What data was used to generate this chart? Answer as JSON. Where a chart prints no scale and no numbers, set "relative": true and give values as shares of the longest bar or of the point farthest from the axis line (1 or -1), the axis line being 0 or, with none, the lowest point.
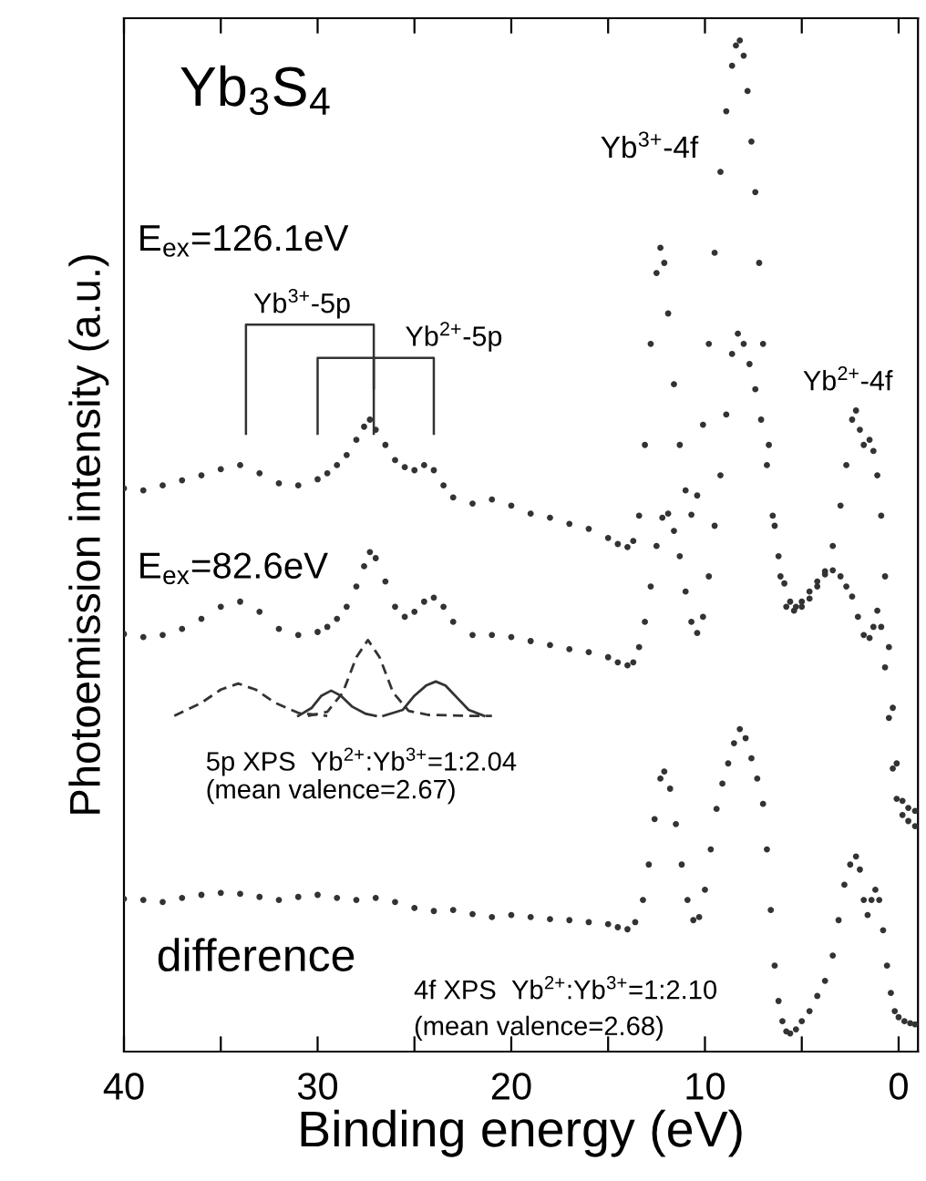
{
  "chart_data": {
    "type": "scatter",
    "relative": true,
    "xlabel": "Binding energy (eV)",
    "ylabel": "Photoemission intensity (a.u.)",
    "xlim": [
      40,
      -1
    ],
    "xticks": [
      40,
      {
        "value": 35,
        "label": null
      },
      30,
      {
        "value": 25,
        "label": null
      },
      20,
      {
        "value": 15,
        "label": null
      },
      10,
      {
        "value": 5,
        "label": null
      },
      0
    ],
    "tick_labels": "x",
    "grid": false,
    "legend": false,
    "marker": "circle",
    "series": [
      {
        "color": "#333333",
        "x": [
          40,
          39,
          38,
          37,
          36,
          35,
          34,
          33,
          32,
          31,
          30,
          29.5,
          29,
          28.5,
          28,
          27.6,
          27.3,
          27,
          26.5,
          26,
          25.5,
          25,
          24.5,
          24,
          23.5,
          23,
          22,
          21,
          20,
          19,
          18,
          17,
          16,
          15,
          14.5,
          14,
          13.7,
          13.4,
          13.1,
          12.8,
          12.5,
          12.3,
          12.1,
          11.9,
          11.6,
          11.3,
          11,
          10.7,
          10.4,
          10.1,
          9.8,
          9.5,
          9.2,
          8.9,
          8.6,
          8.4,
          8.2,
          8.0,
          7.8,
          7.6,
          7.4,
          7.2,
          7.0,
          6.7,
          6.4,
          6.1,
          5.8,
          5.4,
          5.0,
          4.6,
          4.2,
          3.8,
          3.4,
          3.0,
          2.7,
          2.4,
          2.2,
          2.0,
          1.8,
          1.5,
          1.3,
          1.1,
          0.9,
          0.7,
          0.5,
          0.3,
          0.1,
          -0.2,
          -0.5,
          -0.85
        ],
        "values": [
          0.557,
          0.555,
          0.56,
          0.565,
          0.57,
          0.576,
          0.58,
          0.572,
          0.562,
          0.56,
          0.566,
          0.572,
          0.58,
          0.59,
          0.605,
          0.618,
          0.625,
          0.615,
          0.6,
          0.585,
          0.578,
          0.575,
          0.58,
          0.575,
          0.56,
          0.548,
          0.542,
          0.546,
          0.54,
          0.532,
          0.528,
          0.522,
          0.517,
          0.508,
          0.502,
          0.499,
          0.505,
          0.53,
          0.6,
          0.7,
          0.77,
          0.795,
          0.78,
          0.73,
          0.66,
          0.6,
          0.555,
          0.531,
          0.55,
          0.62,
          0.7,
          0.79,
          0.87,
          0.93,
          0.975,
          0.995,
          1.0,
          0.985,
          0.95,
          0.9,
          0.85,
          0.78,
          0.7,
          0.6,
          0.52,
          0.47,
          0.44,
          0.436,
          0.44,
          0.448,
          0.46,
          0.475,
          0.5,
          0.54,
          0.58,
          0.625,
          0.634,
          0.615,
          0.6,
          0.605,
          0.594,
          0.57,
          0.53,
          0.47,
          0.4,
          0.34,
          0.285,
          0.248,
          0.241,
          0.238
        ]
      },
      {
        "color": "#333333",
        "x": [
          40,
          39,
          38,
          37,
          36,
          35,
          34,
          33,
          32,
          31,
          30,
          29.5,
          29,
          28.5,
          28,
          27.6,
          27.3,
          27,
          26.5,
          26,
          25.5,
          25,
          24.5,
          24,
          23.5,
          23,
          22,
          21,
          20,
          19,
          18,
          17,
          16,
          15,
          14.5,
          14,
          13.7,
          13.4,
          13.1,
          12.8,
          12.5,
          12.2,
          11.9,
          11.6,
          11.3,
          11,
          10.7,
          10.4,
          10.1,
          9.8,
          9.5,
          9.2,
          8.9,
          8.6,
          8.3,
          8.0,
          7.7,
          7.4,
          7.1,
          6.8,
          6.5,
          6.2,
          5.9,
          5.6,
          5.3,
          5.0,
          4.6,
          4.2,
          3.8,
          3.4,
          3.0,
          2.7,
          2.4,
          2.1,
          1.8,
          1.5,
          1.3,
          1.1,
          0.9,
          0.7,
          0.5,
          0.3,
          0.1,
          -0.2,
          -0.5,
          -0.85
        ],
        "values": [
          0.413,
          0.41,
          0.412,
          0.418,
          0.428,
          0.44,
          0.445,
          0.435,
          0.418,
          0.412,
          0.415,
          0.42,
          0.428,
          0.44,
          0.46,
          0.48,
          0.494,
          0.488,
          0.465,
          0.44,
          0.43,
          0.435,
          0.445,
          0.449,
          0.44,
          0.425,
          0.412,
          0.412,
          0.41,
          0.406,
          0.402,
          0.398,
          0.395,
          0.39,
          0.385,
          0.382,
          0.385,
          0.4,
          0.425,
          0.46,
          0.5,
          0.528,
          0.532,
          0.515,
          0.49,
          0.455,
          0.425,
          0.414,
          0.43,
          0.47,
          0.52,
          0.57,
          0.63,
          0.69,
          0.71,
          0.7,
          0.68,
          0.655,
          0.625,
          0.58,
          0.53,
          0.49,
          0.463,
          0.445,
          0.44,
          0.445,
          0.455,
          0.465,
          0.472,
          0.476,
          0.47,
          0.46,
          0.45,
          0.43,
          0.412,
          0.409,
          0.42,
          0.436,
          0.42,
          0.38,
          0.33,
          0.28,
          0.25,
          0.234,
          0.228,
          0.223
        ]
      },
      {
        "type": "line",
        "marker": "none",
        "line_style": "dashed",
        "color": "#333333",
        "x": [
          37.4,
          36,
          35,
          34.1,
          33.2,
          32.2,
          31,
          29.5
        ],
        "values": [
          0.332,
          0.345,
          0.358,
          0.364,
          0.358,
          0.345,
          0.335,
          0.332
        ]
      },
      {
        "type": "line",
        "marker": "none",
        "line_style": "dashed",
        "color": "#333333",
        "x": [
          30.5,
          29.5,
          28.7,
          28,
          27.4,
          26.8,
          26.1,
          25.3,
          24.3,
          22,
          21
        ],
        "values": [
          0.332,
          0.336,
          0.355,
          0.39,
          0.407,
          0.39,
          0.355,
          0.337,
          0.333,
          0.332,
          0.332
        ]
      },
      {
        "type": "line",
        "marker": "none",
        "line_style": "solid",
        "color": "#333333",
        "x": [
          31,
          30.3,
          29.8,
          29.3,
          28.8,
          28.2,
          27.5,
          27.0
        ],
        "values": [
          0.332,
          0.34,
          0.352,
          0.357,
          0.352,
          0.341,
          0.334,
          0.332
        ]
      },
      {
        "type": "line",
        "marker": "none",
        "line_style": "solid",
        "color": "#333333",
        "x": [
          26.6,
          25.6,
          25,
          24.4,
          23.9,
          23.4,
          22.8,
          22.2,
          21.4
        ],
        "values": [
          0.332,
          0.338,
          0.352,
          0.362,
          0.366,
          0.362,
          0.35,
          0.338,
          0.332
        ]
      },
      {
        "color": "#333333",
        "x": [
          40,
          39,
          38,
          37,
          36,
          35,
          34,
          33,
          32,
          31,
          30,
          29,
          28,
          27,
          26,
          25,
          24,
          23,
          22,
          21,
          20,
          19,
          18,
          17,
          16,
          15,
          14.5,
          14,
          13.6,
          13.2,
          12.9,
          12.6,
          12.3,
          12.1,
          11.8,
          11.5,
          11.2,
          10.9,
          10.6,
          10.3,
          10.0,
          9.7,
          9.4,
          9.1,
          8.8,
          8.5,
          8.2,
          7.9,
          7.6,
          7.3,
          7.0,
          6.8,
          6.6,
          6.4,
          6.2,
          6.0,
          5.8,
          5.6,
          5.3,
          5.0,
          4.6,
          4.2,
          3.8,
          3.4,
          3.1,
          2.8,
          2.5,
          2.2,
          2.0,
          1.8,
          1.6,
          1.4,
          1.2,
          1.0,
          0.8,
          0.6,
          0.4,
          0.2,
          0,
          -0.3,
          -0.6,
          -0.85
        ],
        "values": [
          0.151,
          0.15,
          0.148,
          0.152,
          0.155,
          0.157,
          0.156,
          0.153,
          0.15,
          0.153,
          0.155,
          0.152,
          0.15,
          0.152,
          0.148,
          0.142,
          0.139,
          0.14,
          0.136,
          0.133,
          0.135,
          0.133,
          0.131,
          0.13,
          0.128,
          0.126,
          0.123,
          0.121,
          0.128,
          0.15,
          0.185,
          0.23,
          0.27,
          0.277,
          0.26,
          0.225,
          0.185,
          0.15,
          0.13,
          0.133,
          0.16,
          0.2,
          0.24,
          0.265,
          0.285,
          0.305,
          0.319,
          0.31,
          0.29,
          0.27,
          0.245,
          0.2,
          0.14,
          0.085,
          0.05,
          0.03,
          0.02,
          0.018,
          0.022,
          0.03,
          0.04,
          0.055,
          0.07,
          0.095,
          0.13,
          0.165,
          0.185,
          0.193,
          0.18,
          0.15,
          0.135,
          0.15,
          0.16,
          0.15,
          0.12,
          0.085,
          0.058,
          0.04,
          0.034,
          0.03,
          0.028,
          0.027
        ]
      }
    ],
    "annotations": [
      "Yb$_{3}$S$_{4}$",
      "E$_{ex}$=126.1eV",
      "Yb$^{3+}$-5p",
      "Yb$^{2+}$-5p",
      "Yb$^{3+}$-4f",
      "Yb$^{2+}$-4f",
      "E$_{ex}$=82.6eV",
      "5p XPS  Yb$^{2+}$:Yb$^{3+}$=1:2.04",
      "(mean valence=2.67)",
      "difference",
      "4f XPS  Yb$^{2+}$:Yb$^{3+}$=1:2.10",
      "(mean valence=2.68)"
    ]
  }
}
